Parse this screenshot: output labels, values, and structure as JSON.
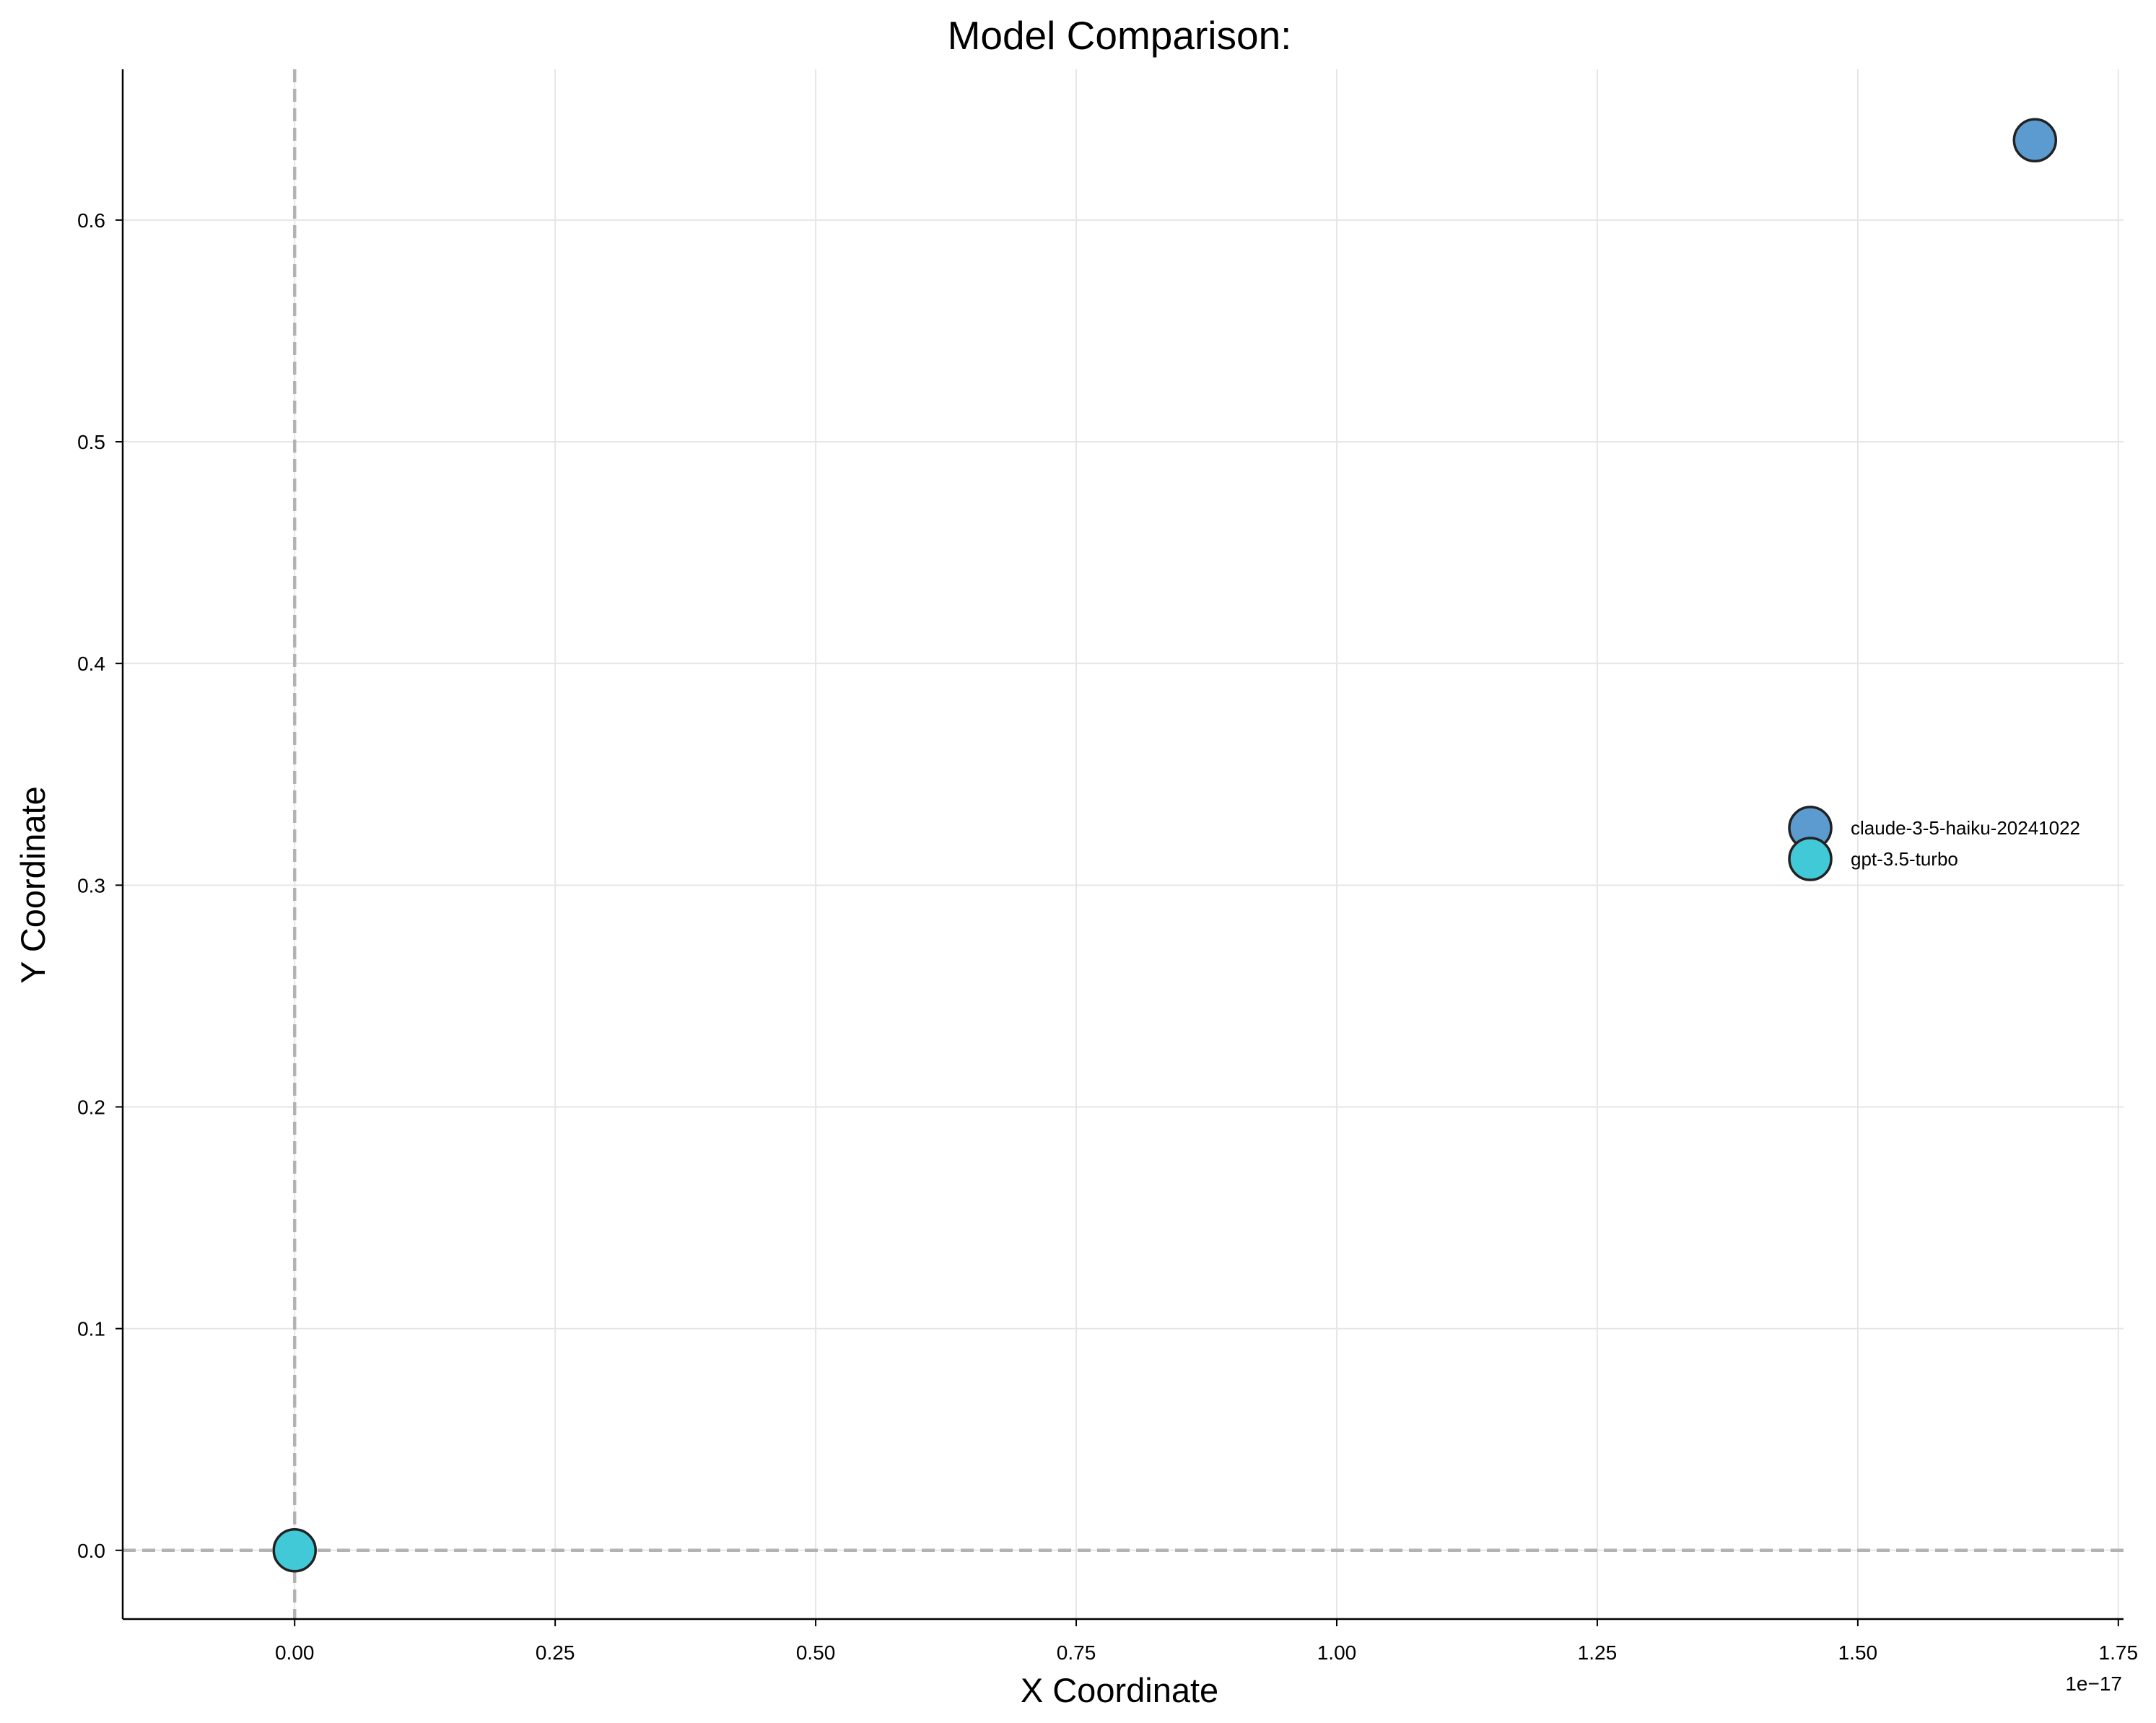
{
  "chart_data": {
    "type": "scatter",
    "title": "Model Comparison:",
    "xlabel": "X Coordinate",
    "ylabel": "Y Coordinate",
    "x_offset_text": "1e−17",
    "xlim": [
      -0.165,
      1.755
    ],
    "ylim": [
      -0.031,
      0.668
    ],
    "x_ticks": [
      0.0,
      0.25,
      0.5,
      0.75,
      1.0,
      1.25,
      1.5,
      1.75
    ],
    "x_tick_labels": [
      "0.00",
      "0.25",
      "0.50",
      "0.75",
      "1.00",
      "1.25",
      "1.50",
      "1.75"
    ],
    "y_ticks": [
      0.0,
      0.1,
      0.2,
      0.3,
      0.4,
      0.5,
      0.6
    ],
    "y_tick_labels": [
      "0.0",
      "0.1",
      "0.2",
      "0.3",
      "0.4",
      "0.5",
      "0.6"
    ],
    "grid": true,
    "reference_lines": {
      "x": 0,
      "y": 0,
      "style": "dashed",
      "color": "#b3b3b3"
    },
    "legend_position": "center-right",
    "series": [
      {
        "name": "claude-3-5-haiku-20241022",
        "color": "#5b9bcf",
        "points": [
          {
            "x": 1.67,
            "y": 0.636
          }
        ]
      },
      {
        "name": "gpt-3.5-turbo",
        "color": "#42c9d8",
        "points": [
          {
            "x": 0.0,
            "y": 0.0
          }
        ]
      }
    ]
  }
}
